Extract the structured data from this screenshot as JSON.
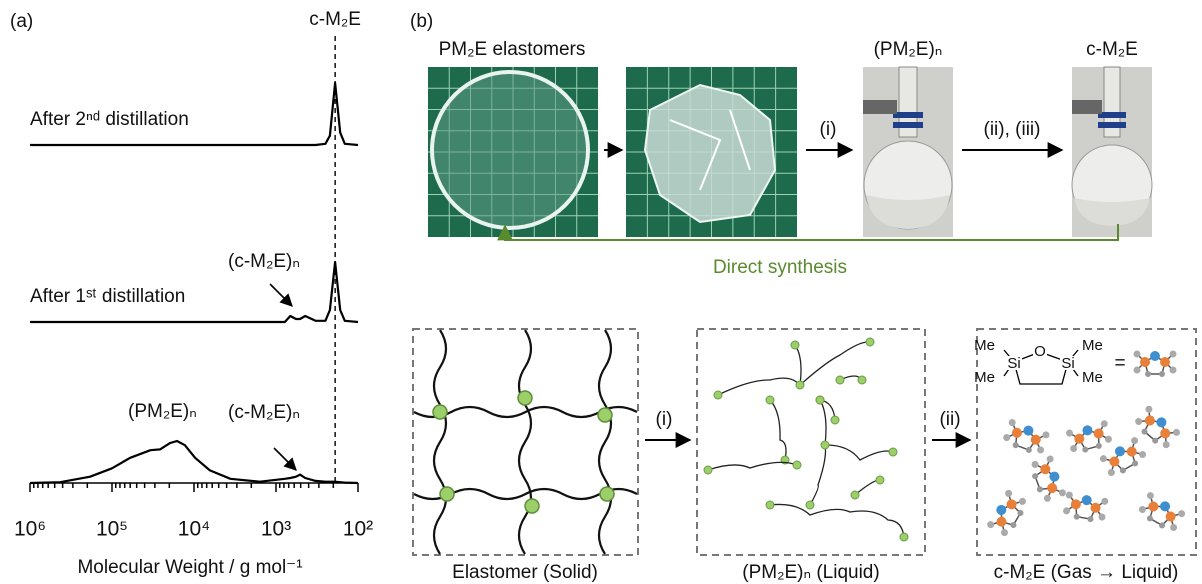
{
  "panel_label_a": "(a)",
  "chart_data": {
    "type": "line",
    "xlabel": "Molecular Weight / g mol⁻¹",
    "xscale": "log",
    "xlim": [
      1000000,
      100
    ],
    "xticks": [
      {
        "value": 1000000,
        "label": "10⁶"
      },
      {
        "value": 100000,
        "label": "10⁵"
      },
      {
        "value": 10000,
        "label": "10⁴"
      },
      {
        "value": 1000,
        "label": "10³"
      },
      {
        "value": 100,
        "label": "10²"
      }
    ],
    "minor_ticks": true,
    "x": [
      1000000,
      430000,
      185000,
      100000,
      60000,
      34000,
      26000,
      19600,
      16100,
      12900,
      9700,
      6400,
      3600,
      1570,
      780,
      670,
      570,
      510,
      440,
      330,
      250,
      220,
      190,
      165,
      145,
      100
    ],
    "series": [
      {
        "name": "After 2ⁿᵈ distillation",
        "color": "#000000",
        "values": [
          0,
          0,
          0,
          0,
          0,
          0,
          0,
          0,
          0,
          0,
          0,
          0,
          0,
          0,
          0,
          0,
          0,
          0,
          0,
          0,
          0.02,
          0.15,
          1.0,
          0.2,
          0.02,
          0
        ]
      },
      {
        "name": "After 1ˢᵗ distillation",
        "color": "#000000",
        "values": [
          0,
          0,
          0,
          0,
          0,
          0,
          0,
          0,
          0,
          0,
          0,
          0,
          0,
          0,
          0,
          0.1,
          0.05,
          0.05,
          0.1,
          0.02,
          0.02,
          0.2,
          1.0,
          0.2,
          0.02,
          0
        ]
      },
      {
        "name": "(PM₂E)ₙ",
        "color": "#000000",
        "values": [
          0,
          0.02,
          0.15,
          0.35,
          0.6,
          0.78,
          0.8,
          0.95,
          1.0,
          0.9,
          0.6,
          0.3,
          0.1,
          0.03,
          0.1,
          0.12,
          0.15,
          0.2,
          0.12,
          0.05,
          0.03,
          0.03,
          0.03,
          0.02,
          0.01,
          0
        ]
      }
    ],
    "reference_line": {
      "x": 190,
      "label": "c-M₂E"
    },
    "annotations": [
      "(c-M₂E)ₙ",
      "(c-M₂E)ₙ"
    ]
  },
  "panel_b": {
    "label": "(b)",
    "photo_titles": [
      "PM₂E elastomers",
      "(PM₂E)ₙ",
      "c-M₂E"
    ],
    "steps": [
      "(i)",
      "(ii), (iii)"
    ],
    "loop_label": "Direct synthesis",
    "scheme_steps": [
      "(i)",
      "(ii)"
    ],
    "boxes": [
      "Elastomer (Solid)",
      "(PM₂E)ₙ (Liquid)",
      "c-M₂E (Gas → Liquid)"
    ],
    "structure": {
      "atoms": [
        "Me",
        "Me",
        "Si",
        "O",
        "Si",
        "Me",
        "Me"
      ],
      "equals": "="
    }
  }
}
